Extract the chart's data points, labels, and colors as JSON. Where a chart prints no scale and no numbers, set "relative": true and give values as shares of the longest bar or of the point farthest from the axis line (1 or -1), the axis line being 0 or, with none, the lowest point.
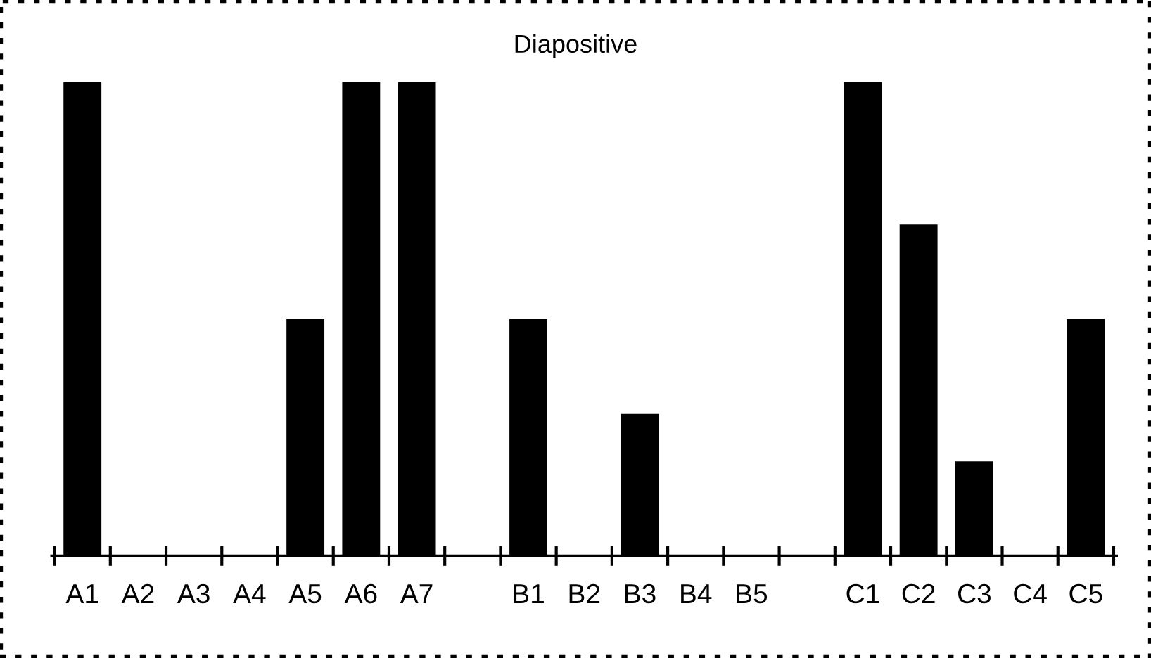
{
  "chart_data": {
    "type": "bar",
    "title": "Diapositive",
    "relative": true,
    "color": "#000000",
    "categories": [
      "A1",
      "A2",
      "A3",
      "A4",
      "A5",
      "A6",
      "A7",
      null,
      "B1",
      "B2",
      "B3",
      "B4",
      "B5",
      null,
      "C1",
      "C2",
      "C3",
      "C4",
      "C5"
    ],
    "values": [
      1,
      0,
      0,
      0,
      0.5,
      1,
      1,
      0,
      0.5,
      0,
      0.3,
      0,
      0,
      0,
      1,
      0.7,
      0.2,
      0,
      0.5
    ],
    "grid": false,
    "legend": false
  }
}
